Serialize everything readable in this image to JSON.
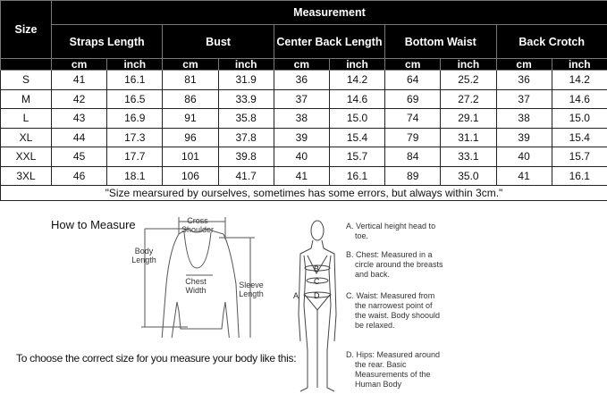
{
  "table": {
    "size_header": "Size",
    "measurement_header": "Measurement",
    "columns": [
      "Straps Length",
      "Bust",
      "Center Back Length",
      "Bottom Waist",
      "Back Crotch"
    ],
    "units": [
      "cm",
      "inch"
    ],
    "rows": [
      {
        "size": "S",
        "values": [
          "41",
          "16.1",
          "81",
          "31.9",
          "36",
          "14.2",
          "64",
          "25.2",
          "36",
          "14.2"
        ]
      },
      {
        "size": "M",
        "values": [
          "42",
          "16.5",
          "86",
          "33.9",
          "37",
          "14.6",
          "69",
          "27.2",
          "37",
          "14.6"
        ]
      },
      {
        "size": "L",
        "values": [
          "43",
          "16.9",
          "91",
          "35.8",
          "38",
          "15.0",
          "74",
          "29.1",
          "38",
          "15.0"
        ]
      },
      {
        "size": "XL",
        "values": [
          "44",
          "17.3",
          "96",
          "37.8",
          "39",
          "15.4",
          "79",
          "31.1",
          "39",
          "15.4"
        ]
      },
      {
        "size": "XXL",
        "values": [
          "45",
          "17.7",
          "101",
          "39.8",
          "40",
          "15.7",
          "84",
          "33.1",
          "40",
          "15.7"
        ]
      },
      {
        "size": "3XL",
        "values": [
          "46",
          "18.1",
          "106",
          "41.7",
          "41",
          "16.1",
          "89",
          "35.0",
          "41",
          "16.1"
        ]
      }
    ],
    "note": "\"Size mearsured by ourselves, sometimes has some errors, but always within 3cm.\""
  },
  "how_to_measure": {
    "title": "How to Measure",
    "garment_labels": {
      "cross_shoulder": "Cross Shoulder",
      "body_length": "Body Length",
      "chest_width": "Chest Width",
      "sleeve_length": "Sleeve Length"
    },
    "instruction": "To choose the correct size for you measure your body like this:",
    "figure_labels": [
      "A",
      "B",
      "C",
      "D"
    ],
    "descriptions": [
      "A. Vertical height head to toe.",
      "B. Chest: Measured in a circle around the breasts and back.",
      "C. Waist: Measured from the narrowest point of the waist. Body shoould be relaxed.",
      "D. Hips: Measured around the rear. Basic Measurements of the Human Body"
    ]
  }
}
